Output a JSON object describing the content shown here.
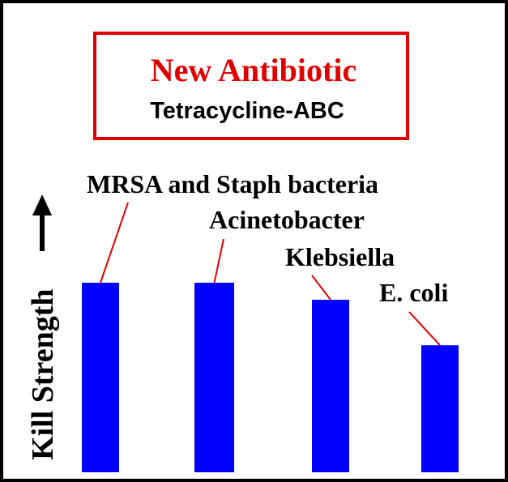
{
  "chart_data": {
    "type": "bar",
    "title": "New Antibiotic",
    "subtitle": "Tetracycline-ABC",
    "y_label": "Kill Strength",
    "categories": [
      "MRSA and Staph bacteria",
      "Acinetobacter",
      "Klebsiella",
      "E. coli"
    ],
    "values": [
      100,
      100,
      91,
      67
    ],
    "color": "#0000ff",
    "ylim": [
      0,
      100
    ]
  }
}
